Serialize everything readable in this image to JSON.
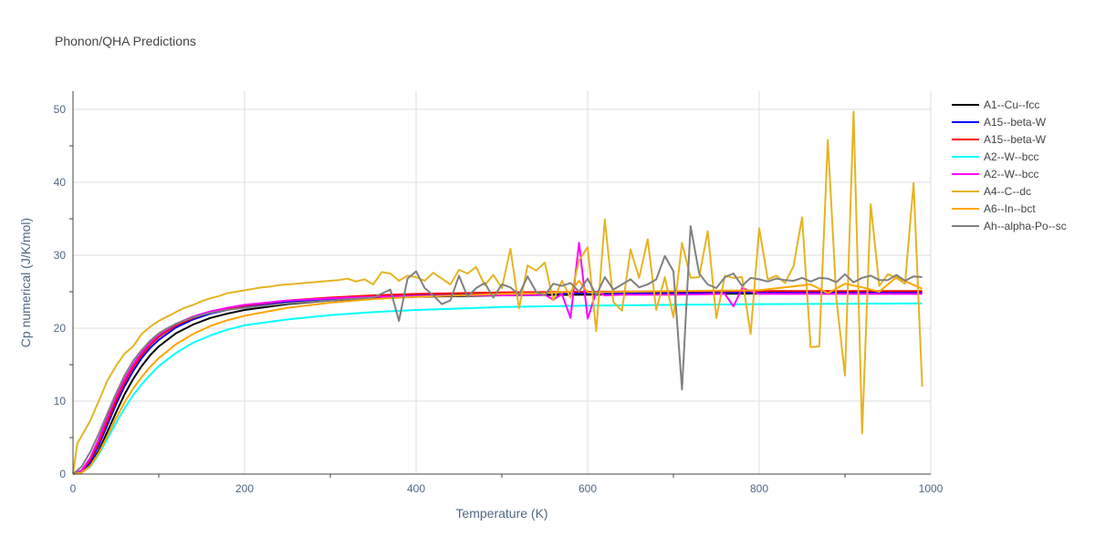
{
  "chart_data": {
    "type": "line",
    "title": "Phonon/QHA Predictions",
    "xlabel": "Temperature (K)",
    "ylabel": "Cp numerical (J/K/mol)",
    "xlim": [
      0,
      1000
    ],
    "ylim": [
      0,
      52.5
    ],
    "x_ticks": [
      0,
      200,
      400,
      600,
      800,
      1000
    ],
    "y_ticks": [
      0,
      10,
      20,
      30,
      40,
      50
    ],
    "grid": true,
    "legend_position": "right",
    "series": [
      {
        "name": "A1--Cu--fcc",
        "color": "#000000",
        "x": [
          0,
          10,
          20,
          30,
          40,
          50,
          60,
          70,
          80,
          90,
          100,
          120,
          140,
          160,
          180,
          200,
          250,
          300,
          350,
          400,
          450,
          500,
          600,
          700,
          800,
          900,
          990
        ],
        "y": [
          0,
          0.2,
          1.2,
          3.2,
          5.8,
          8.4,
          10.9,
          13.0,
          14.8,
          16.3,
          17.5,
          19.3,
          20.5,
          21.4,
          22.0,
          22.5,
          23.3,
          23.8,
          24.1,
          24.3,
          24.4,
          24.5,
          24.6,
          24.7,
          24.75,
          24.8,
          24.8
        ]
      },
      {
        "name": "A15--beta-W",
        "color": "#0000ff",
        "x": [
          0,
          10,
          20,
          30,
          40,
          50,
          60,
          70,
          80,
          90,
          100,
          120,
          140,
          160,
          180,
          200,
          250,
          300,
          350,
          400,
          450,
          500,
          600,
          700,
          800,
          900,
          990
        ],
        "y": [
          0,
          0.3,
          1.6,
          3.9,
          6.7,
          9.5,
          12.0,
          14.1,
          15.9,
          17.3,
          18.4,
          20.1,
          21.2,
          22.0,
          22.5,
          23.0,
          23.6,
          24.0,
          24.3,
          24.5,
          24.6,
          24.7,
          24.8,
          24.85,
          24.9,
          24.9,
          24.95
        ]
      },
      {
        "name": "A15--beta-W",
        "color": "#ff0000",
        "x": [
          0,
          10,
          20,
          30,
          40,
          50,
          60,
          70,
          80,
          90,
          100,
          120,
          140,
          160,
          180,
          200,
          250,
          300,
          350,
          400,
          450,
          500,
          600,
          700,
          800,
          900,
          990
        ],
        "y": [
          0,
          0.4,
          1.9,
          4.3,
          7.2,
          10.0,
          12.5,
          14.6,
          16.3,
          17.7,
          18.8,
          20.4,
          21.4,
          22.2,
          22.7,
          23.1,
          23.8,
          24.2,
          24.5,
          24.7,
          24.8,
          24.9,
          25.0,
          25.05,
          25.1,
          25.1,
          25.1
        ]
      },
      {
        "name": "A2--W--bcc",
        "color": "#00ffff",
        "x": [
          0,
          10,
          20,
          30,
          40,
          50,
          60,
          70,
          80,
          90,
          100,
          120,
          140,
          160,
          180,
          200,
          250,
          300,
          350,
          400,
          450,
          500,
          600,
          700,
          800,
          900,
          990
        ],
        "y": [
          0,
          0.2,
          1.0,
          2.7,
          4.8,
          7.0,
          9.0,
          10.8,
          12.3,
          13.6,
          14.8,
          16.6,
          18.0,
          19.0,
          19.8,
          20.4,
          21.2,
          21.8,
          22.2,
          22.5,
          22.7,
          22.9,
          23.1,
          23.2,
          23.3,
          23.35,
          23.4
        ]
      },
      {
        "name": "A2--W--bcc",
        "color": "#ff00ff",
        "x": [
          0,
          10,
          20,
          30,
          40,
          50,
          60,
          70,
          80,
          90,
          100,
          120,
          140,
          160,
          180,
          200,
          250,
          300,
          350,
          400,
          450,
          500,
          550,
          560,
          570,
          580,
          590,
          600,
          610,
          620,
          640,
          700,
          760,
          770,
          780,
          800,
          900,
          990
        ],
        "y": [
          0,
          0.5,
          2.2,
          4.8,
          7.8,
          10.6,
          13.0,
          15.0,
          16.7,
          18.0,
          19.1,
          20.6,
          21.6,
          22.3,
          22.8,
          23.2,
          23.8,
          24.1,
          24.3,
          24.4,
          24.5,
          24.5,
          24.6,
          23.9,
          24.7,
          21.4,
          31.7,
          21.3,
          25.0,
          24.5,
          24.6,
          24.6,
          24.7,
          23.0,
          25.5,
          24.7,
          24.7,
          24.7
        ]
      },
      {
        "name": "A4--C--dc",
        "color": "#e6b422",
        "x": [
          0,
          5,
          10,
          20,
          30,
          40,
          50,
          60,
          70,
          80,
          90,
          100,
          110,
          120,
          130,
          140,
          150,
          160,
          170,
          180,
          190,
          200,
          210,
          220,
          230,
          240,
          250,
          260,
          270,
          280,
          290,
          300,
          310,
          320,
          330,
          340,
          350,
          360,
          370,
          380,
          390,
          400,
          410,
          420,
          430,
          440,
          450,
          460,
          470,
          480,
          490,
          500,
          510,
          520,
          530,
          540,
          550,
          560,
          570,
          580,
          590,
          600,
          610,
          620,
          630,
          640,
          650,
          660,
          670,
          680,
          690,
          700,
          710,
          720,
          730,
          740,
          750,
          760,
          770,
          780,
          790,
          800,
          810,
          820,
          830,
          840,
          850,
          860,
          870,
          880,
          890,
          900,
          910,
          920,
          930,
          940,
          950,
          960,
          970,
          980,
          990
        ],
        "y": [
          0,
          4.2,
          5.2,
          7.3,
          10.0,
          12.8,
          14.8,
          16.5,
          17.5,
          19.2,
          20.2,
          21.0,
          21.6,
          22.2,
          22.8,
          23.2,
          23.7,
          24.1,
          24.4,
          24.8,
          25.0,
          25.2,
          25.4,
          25.6,
          25.7,
          25.9,
          26.0,
          26.1,
          26.2,
          26.3,
          26.4,
          26.5,
          26.6,
          26.8,
          26.4,
          26.7,
          26.0,
          27.7,
          27.5,
          26.5,
          27.2,
          27.0,
          26.5,
          27.6,
          26.8,
          26.0,
          28.0,
          27.5,
          28.4,
          25.9,
          27.3,
          25.5,
          30.9,
          22.7,
          28.6,
          27.9,
          29.0,
          23.8,
          26.5,
          24.2,
          29.3,
          31.1,
          19.6,
          34.9,
          23.6,
          22.4,
          30.8,
          26.9,
          32.2,
          22.5,
          27.0,
          21.5,
          31.7,
          26.9,
          27.0,
          33.3,
          21.4,
          27.2,
          26.9,
          27.0,
          19.2,
          33.7,
          26.7,
          27.2,
          26.2,
          28.5,
          35.2,
          17.4,
          17.5,
          45.8,
          24.0,
          13.5,
          49.7,
          5.6,
          37.0,
          25.8,
          27.4,
          26.9,
          26.1,
          39.9,
          12.0
        ]
      },
      {
        "name": "A6--In--bct",
        "color": "#ffa500",
        "x": [
          0,
          10,
          20,
          30,
          40,
          50,
          60,
          70,
          80,
          90,
          100,
          120,
          140,
          160,
          180,
          200,
          250,
          300,
          350,
          400,
          450,
          500,
          550,
          580,
          590,
          600,
          650,
          700,
          800,
          860,
          880,
          900,
          920,
          940,
          960,
          990
        ],
        "y": [
          0,
          0.2,
          1.1,
          2.9,
          5.2,
          7.6,
          9.8,
          11.7,
          13.3,
          14.7,
          15.9,
          17.8,
          19.2,
          20.3,
          21.1,
          21.7,
          22.8,
          23.5,
          24.0,
          24.3,
          24.5,
          24.7,
          24.8,
          25.0,
          26.5,
          24.9,
          25.0,
          25.1,
          25.2,
          26.0,
          24.8,
          26.1,
          25.6,
          25.0,
          27.0,
          25.4
        ]
      },
      {
        "name": "Ah--alpha-Po--sc",
        "color": "#808080",
        "x": [
          0,
          10,
          20,
          30,
          40,
          50,
          60,
          70,
          80,
          90,
          100,
          110,
          120,
          140,
          160,
          180,
          200,
          250,
          300,
          350,
          370,
          380,
          390,
          400,
          410,
          420,
          430,
          440,
          450,
          460,
          470,
          480,
          490,
          500,
          510,
          520,
          530,
          540,
          550,
          560,
          570,
          580,
          590,
          600,
          610,
          620,
          630,
          640,
          650,
          660,
          670,
          680,
          690,
          700,
          710,
          720,
          730,
          740,
          750,
          760,
          770,
          780,
          790,
          800,
          810,
          820,
          830,
          840,
          850,
          860,
          870,
          880,
          890,
          900,
          910,
          920,
          930,
          940,
          950,
          960,
          970,
          980,
          990
        ],
        "y": [
          0,
          1.0,
          3.0,
          5.5,
          8.3,
          11.0,
          13.5,
          15.5,
          17.0,
          18.3,
          19.3,
          20.0,
          20.6,
          21.5,
          22.1,
          22.5,
          22.8,
          23.4,
          23.8,
          24.2,
          25.3,
          21.0,
          26.8,
          27.8,
          25.5,
          24.5,
          23.3,
          23.8,
          27.2,
          24.3,
          25.5,
          26.2,
          24.2,
          26.0,
          25.6,
          24.6,
          27.1,
          25.0,
          24.5,
          26.1,
          25.8,
          26.2,
          25.0,
          26.8,
          24.5,
          27.0,
          25.3,
          26.0,
          26.7,
          25.6,
          26.0,
          26.7,
          29.9,
          27.8,
          11.6,
          34.0,
          27.5,
          26.0,
          25.5,
          27.0,
          27.5,
          25.8,
          26.9,
          26.7,
          26.4,
          26.8,
          26.6,
          26.5,
          26.9,
          26.4,
          26.9,
          26.8,
          26.3,
          27.4,
          26.3,
          26.9,
          27.2,
          26.6,
          26.6,
          27.3,
          26.5,
          27.1,
          27.0
        ]
      }
    ]
  }
}
